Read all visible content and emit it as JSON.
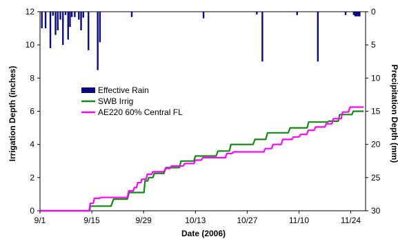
{
  "chart_data": {
    "type": "line",
    "xlabel": "Date (2006)",
    "ylabel_left": "Irrigation Depth (inches)",
    "ylabel_right": "Precipitation Depth (mm)",
    "x_ticks": [
      "9/1",
      "9/15",
      "9/29",
      "10/13",
      "10/27",
      "11/10",
      "11/24"
    ],
    "x_tick_days": [
      0,
      14,
      28,
      42,
      56,
      70,
      84
    ],
    "y_left_ticks": [
      "0",
      "2",
      "4",
      "6",
      "8",
      "10",
      "12"
    ],
    "y_left_tick_values": [
      0,
      2,
      4,
      6,
      8,
      10,
      12
    ],
    "ylim_left": [
      0,
      12
    ],
    "y_right_ticks": [
      "0",
      "5",
      "10",
      "15",
      "20",
      "25",
      "30"
    ],
    "y_right_tick_values": [
      0,
      5,
      10,
      15,
      20,
      25,
      30
    ],
    "ylim_right": [
      0,
      30
    ],
    "xlim_days": [
      0,
      88
    ],
    "legend_position": "center-left",
    "grid": false,
    "series": [
      {
        "name": "Effective Rain",
        "kind": "bar",
        "axis": "right",
        "color": "#0a0a80",
        "points": [
          [
            0.5,
            2.5
          ],
          [
            1.5,
            2.5
          ],
          [
            2.8,
            5.5
          ],
          [
            3.5,
            0.6
          ],
          [
            4.2,
            3.5
          ],
          [
            4.8,
            2.8
          ],
          [
            5.5,
            1.2
          ],
          [
            6.2,
            5.0
          ],
          [
            6.9,
            0.5
          ],
          [
            7.6,
            4.2
          ],
          [
            8.1,
            2.3
          ],
          [
            8.6,
            0.8
          ],
          [
            9.4,
            0.8
          ],
          [
            10.5,
            1.2
          ],
          [
            11.1,
            2.8
          ],
          [
            11.7,
            0.9
          ],
          [
            13.1,
            5.8
          ],
          [
            15.6,
            8.8
          ],
          [
            16.2,
            4.6
          ],
          [
            24.8,
            0.8
          ],
          [
            44.2,
            1.0
          ],
          [
            58.6,
            0.4
          ],
          [
            60.1,
            7.5
          ],
          [
            69.5,
            0.5
          ],
          [
            75.1,
            7.5
          ],
          [
            82.6,
            0.5
          ],
          [
            84.8,
            0.5
          ],
          [
            85.2,
            0.7
          ],
          [
            85.6,
            0.7
          ],
          [
            86.0,
            0.7
          ],
          [
            86.4,
            0.7
          ]
        ]
      },
      {
        "name": "SWB Irrig",
        "kind": "step",
        "axis": "left",
        "color": "#118811",
        "points": [
          [
            0,
            0
          ],
          [
            13.4,
            0
          ],
          [
            13.6,
            0.28
          ],
          [
            19.2,
            0.28
          ],
          [
            19.9,
            0.7
          ],
          [
            23.6,
            0.7
          ],
          [
            24.1,
            1.1
          ],
          [
            28.1,
            1.1
          ],
          [
            28.4,
            1.8
          ],
          [
            29.1,
            1.8
          ],
          [
            29.4,
            2.0
          ],
          [
            30.5,
            2.0
          ],
          [
            30.9,
            2.25
          ],
          [
            33.5,
            2.25
          ],
          [
            34.0,
            2.6
          ],
          [
            37.7,
            2.6
          ],
          [
            38.1,
            3.0
          ],
          [
            41.6,
            3.0
          ],
          [
            42.0,
            3.3
          ],
          [
            47.6,
            3.3
          ],
          [
            48.1,
            3.6
          ],
          [
            51.2,
            3.6
          ],
          [
            51.6,
            4.0
          ],
          [
            57.6,
            4.0
          ],
          [
            58.1,
            4.3
          ],
          [
            61.0,
            4.3
          ],
          [
            61.5,
            4.7
          ],
          [
            67.1,
            4.7
          ],
          [
            67.6,
            5.0
          ],
          [
            72.2,
            5.0
          ],
          [
            72.6,
            5.35
          ],
          [
            77.7,
            5.35
          ],
          [
            78.1,
            5.4
          ],
          [
            80.6,
            5.4
          ],
          [
            81.0,
            5.8
          ],
          [
            84.3,
            5.8
          ],
          [
            84.7,
            6.0
          ],
          [
            87.5,
            6.0
          ]
        ]
      },
      {
        "name": "AE220 60% Central FL",
        "kind": "step",
        "axis": "left",
        "color": "#ff00ff",
        "points": [
          [
            0,
            0
          ],
          [
            13.3,
            0
          ],
          [
            13.6,
            0.45
          ],
          [
            14.4,
            0.45
          ],
          [
            14.7,
            0.75
          ],
          [
            16.1,
            0.75
          ],
          [
            16.4,
            0.8
          ],
          [
            23.6,
            0.8
          ],
          [
            24.0,
            1.2
          ],
          [
            25.2,
            1.2
          ],
          [
            25.5,
            1.4
          ],
          [
            26.1,
            1.4
          ],
          [
            26.4,
            1.7
          ],
          [
            27.3,
            1.7
          ],
          [
            27.5,
            1.9
          ],
          [
            28.7,
            1.9
          ],
          [
            29.0,
            2.2
          ],
          [
            30.2,
            2.2
          ],
          [
            30.5,
            2.35
          ],
          [
            33.5,
            2.35
          ],
          [
            33.9,
            2.55
          ],
          [
            35.1,
            2.55
          ],
          [
            35.5,
            2.7
          ],
          [
            38.7,
            2.7
          ],
          [
            39.1,
            2.85
          ],
          [
            41.6,
            2.85
          ],
          [
            42.0,
            3.05
          ],
          [
            43.6,
            3.05
          ],
          [
            44.0,
            3.2
          ],
          [
            50.1,
            3.2
          ],
          [
            50.5,
            3.45
          ],
          [
            51.9,
            3.45
          ],
          [
            52.3,
            3.55
          ],
          [
            60.5,
            3.55
          ],
          [
            60.9,
            3.75
          ],
          [
            62.6,
            3.75
          ],
          [
            63.0,
            4.0
          ],
          [
            65.2,
            4.0
          ],
          [
            65.6,
            4.3
          ],
          [
            68.1,
            4.3
          ],
          [
            68.5,
            4.45
          ],
          [
            70.0,
            4.45
          ],
          [
            70.4,
            4.6
          ],
          [
            72.1,
            4.6
          ],
          [
            72.5,
            4.85
          ],
          [
            74.1,
            4.85
          ],
          [
            74.5,
            5.05
          ],
          [
            77.0,
            5.05
          ],
          [
            77.4,
            5.25
          ],
          [
            78.9,
            5.25
          ],
          [
            79.3,
            5.55
          ],
          [
            81.4,
            5.55
          ],
          [
            81.8,
            5.95
          ],
          [
            83.4,
            5.95
          ],
          [
            83.8,
            6.25
          ],
          [
            87.5,
            6.25
          ]
        ]
      }
    ]
  }
}
